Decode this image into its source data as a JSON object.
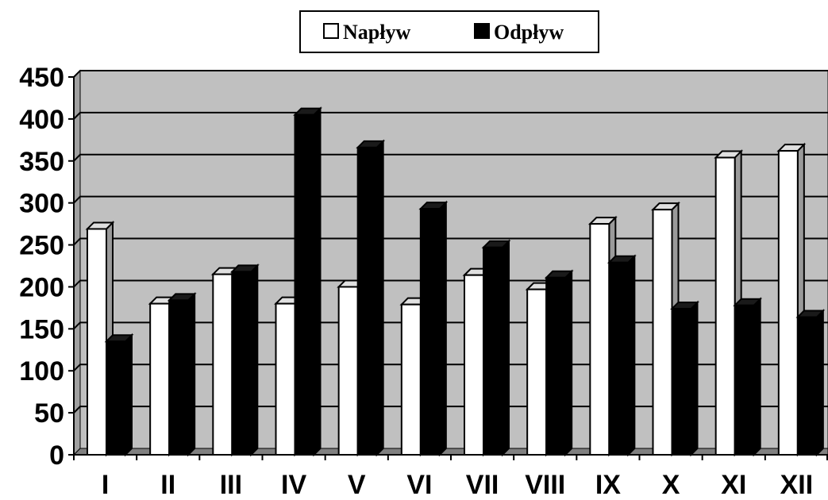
{
  "chart_data": {
    "type": "bar",
    "categories": [
      "I",
      "II",
      "III",
      "IV",
      "V",
      "VI",
      "VII",
      "VIII",
      "IX",
      "X",
      "XI",
      "XII"
    ],
    "series": [
      {
        "name": "Napływ",
        "values": [
          269,
          180,
          215,
          180,
          200,
          179,
          214,
          197,
          275,
          292,
          354,
          362
        ],
        "color": "#ffffff"
      },
      {
        "name": "Odpływ",
        "values": [
          135,
          184,
          218,
          405,
          366,
          293,
          247,
          211,
          229,
          174,
          178,
          164
        ],
        "color": "#000000"
      }
    ],
    "y_ticks": [
      "0",
      "50",
      "100",
      "150",
      "200",
      "250",
      "300",
      "350",
      "400",
      "450"
    ],
    "ylim": [
      0,
      450
    ],
    "title": "",
    "xlabel": "",
    "ylabel": "",
    "grid": true,
    "legend": "top-center",
    "plot_background": "#c0c0c0"
  }
}
